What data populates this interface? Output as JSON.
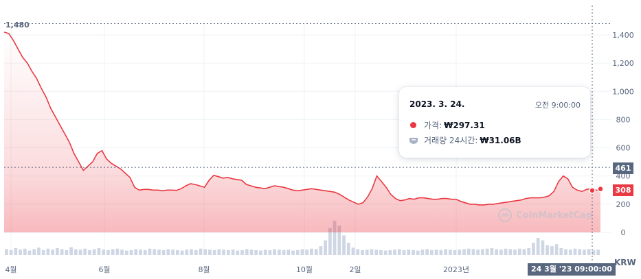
{
  "chart_data": {
    "type": "area",
    "currency": "KRW",
    "y_ticks": [
      "1,400",
      "1,200",
      "1,000",
      "800",
      "600",
      "400",
      "200",
      "0"
    ],
    "y_tick_values": [
      1400,
      1200,
      1000,
      800,
      600,
      400,
      200,
      0
    ],
    "ylim": [
      -60,
      1580
    ],
    "x_tick_labels": [
      "4월",
      "6월",
      "8월",
      "10월",
      "2일",
      "2023년"
    ],
    "high_label": "1,480",
    "high_value": 1480,
    "crosshair_price": "461",
    "crosshair_value": 461,
    "current_price_label": "308",
    "current_value": 308,
    "grid": true,
    "series": [
      {
        "values": [
          1420,
          1410,
          1360,
          1300,
          1240,
          1200,
          1140,
          1090,
          1020,
          960,
          880,
          820,
          760,
          700,
          640,
          560,
          500,
          440,
          470,
          500,
          560,
          580,
          520,
          490,
          470,
          450,
          420,
          390,
          320,
          300,
          305,
          305,
          300,
          300,
          295,
          300,
          300,
          298,
          310,
          330,
          345,
          340,
          330,
          320,
          370,
          405,
          395,
          385,
          390,
          380,
          375,
          370,
          340,
          330,
          320,
          315,
          310,
          320,
          330,
          325,
          320,
          310,
          300,
          295,
          300,
          305,
          310,
          305,
          300,
          295,
          290,
          285,
          270,
          250,
          230,
          215,
          200,
          210,
          250,
          310,
          400,
          360,
          320,
          270,
          240,
          225,
          230,
          240,
          235,
          245,
          245,
          240,
          235,
          235,
          240,
          240,
          235,
          235,
          220,
          210,
          200,
          200,
          195,
          195,
          200,
          200,
          205,
          210,
          215,
          220,
          225,
          230,
          240,
          245,
          245,
          245,
          250,
          260,
          290,
          360,
          400,
          380,
          320,
          300,
          290,
          305,
          310,
          300,
          298
        ]
      }
    ],
    "volume_values": [
      12,
      10,
      14,
      11,
      13,
      9,
      12,
      15,
      10,
      13,
      11,
      14,
      12,
      10,
      16,
      12,
      11,
      13,
      10,
      12,
      14,
      11,
      10,
      12,
      13,
      11,
      9,
      10,
      12,
      11,
      10,
      13,
      12,
      11,
      10,
      12,
      11,
      10,
      9,
      11,
      12,
      10,
      13,
      12,
      11,
      10,
      12,
      11,
      10,
      11,
      9,
      10,
      12,
      11,
      10,
      9,
      11,
      10,
      12,
      11,
      10,
      11,
      9,
      10,
      12,
      11,
      13,
      12,
      18,
      30,
      55,
      70,
      60,
      40,
      25,
      15,
      12,
      10,
      11,
      12,
      11,
      10,
      9,
      10,
      11,
      12,
      10,
      11,
      10,
      9,
      11,
      12,
      10,
      11,
      10,
      12,
      11,
      10,
      11,
      12,
      13,
      12,
      11,
      12,
      13,
      14,
      12,
      11,
      13,
      12,
      11,
      13,
      12,
      14,
      25,
      35,
      30,
      20,
      18,
      22,
      14,
      12,
      11,
      13,
      12,
      11,
      12,
      10,
      11
    ]
  },
  "tooltip": {
    "date": "2023. 3. 24.",
    "time": "오전 9:00:00",
    "price_label": "가격:",
    "price_value": "₩297.31",
    "volume_label": "거래량 24시간:",
    "volume_value": "₩31.06B"
  },
  "axis_badges": {
    "time": "24 3월 '23  09:00:00",
    "currency": "KRW"
  },
  "watermark": "CoinMarketCap",
  "colors": {
    "line": "#ea3943",
    "area_top": "#f7a6ab",
    "grid": "#eff2f5",
    "axis_text": "#58667e",
    "volume": "#cfd6e4"
  }
}
